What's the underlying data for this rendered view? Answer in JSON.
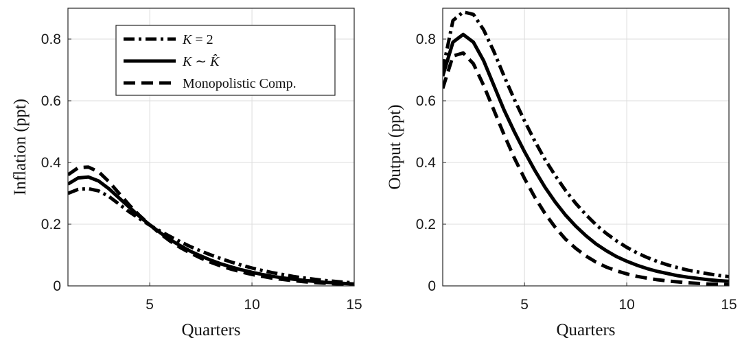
{
  "chart_data": [
    {
      "type": "line",
      "title": "",
      "xlabel": "Quarters",
      "ylabel": "Inflation (ppt)",
      "xlim": [
        1,
        15
      ],
      "ylim": [
        0,
        0.9
      ],
      "xticks": [
        "5",
        "10",
        "15"
      ],
      "yticks": [
        "0",
        "0.2",
        "0.4",
        "0.6",
        "0.8"
      ],
      "grid": true,
      "legend": "top-center",
      "x": [
        1,
        1.5,
        2,
        2.5,
        3,
        3.5,
        4,
        4.5,
        5,
        5.5,
        6,
        6.5,
        7,
        7.5,
        8,
        8.5,
        9,
        9.5,
        10,
        10.5,
        11,
        11.5,
        12,
        12.5,
        13,
        13.5,
        14,
        14.5,
        15
      ],
      "series": [
        {
          "name": "K = 2",
          "style": "dashdot",
          "values": [
            0.3,
            0.313,
            0.315,
            0.308,
            0.29,
            0.265,
            0.24,
            0.218,
            0.197,
            0.178,
            0.16,
            0.143,
            0.127,
            0.113,
            0.1,
            0.088,
            0.077,
            0.067,
            0.058,
            0.05,
            0.043,
            0.037,
            0.031,
            0.026,
            0.022,
            0.018,
            0.015,
            0.012,
            0.01
          ]
        },
        {
          "name": "K ~ K̂",
          "style": "solid",
          "values": [
            0.33,
            0.35,
            0.353,
            0.34,
            0.315,
            0.285,
            0.255,
            0.225,
            0.198,
            0.173,
            0.15,
            0.13,
            0.112,
            0.097,
            0.083,
            0.071,
            0.061,
            0.052,
            0.044,
            0.037,
            0.031,
            0.026,
            0.022,
            0.018,
            0.015,
            0.012,
            0.01,
            0.008,
            0.006
          ]
        },
        {
          "name": "Monopolistic Comp.",
          "style": "dashed",
          "values": [
            0.36,
            0.383,
            0.385,
            0.37,
            0.338,
            0.3,
            0.262,
            0.228,
            0.198,
            0.17,
            0.145,
            0.124,
            0.106,
            0.09,
            0.076,
            0.064,
            0.054,
            0.045,
            0.037,
            0.031,
            0.025,
            0.021,
            0.017,
            0.014,
            0.011,
            0.009,
            0.007,
            0.006,
            0.005
          ]
        }
      ]
    },
    {
      "type": "line",
      "title": "",
      "xlabel": "Quarters",
      "ylabel": "Output (ppt)",
      "xlim": [
        1,
        15
      ],
      "ylim": [
        0,
        0.9
      ],
      "xticks": [
        "5",
        "10",
        "15"
      ],
      "yticks": [
        "0",
        "0.2",
        "0.4",
        "0.6",
        "0.8"
      ],
      "grid": true,
      "x": [
        1,
        1.5,
        2,
        2.5,
        3,
        3.5,
        4,
        4.5,
        5,
        5.5,
        6,
        6.5,
        7,
        7.5,
        8,
        8.5,
        9,
        9.5,
        10,
        10.5,
        11,
        11.5,
        12,
        12.5,
        13,
        13.5,
        14,
        14.5,
        15
      ],
      "series": [
        {
          "name": "K = 2",
          "style": "dashdot",
          "values": [
            0.7,
            0.86,
            0.888,
            0.88,
            0.83,
            0.76,
            0.68,
            0.605,
            0.535,
            0.47,
            0.41,
            0.358,
            0.31,
            0.268,
            0.231,
            0.198,
            0.17,
            0.146,
            0.125,
            0.107,
            0.092,
            0.079,
            0.068,
            0.059,
            0.051,
            0.045,
            0.039,
            0.034,
            0.03
          ]
        },
        {
          "name": "K ~ K̂",
          "style": "solid",
          "values": [
            0.68,
            0.79,
            0.815,
            0.79,
            0.73,
            0.65,
            0.57,
            0.5,
            0.435,
            0.375,
            0.32,
            0.272,
            0.23,
            0.194,
            0.163,
            0.136,
            0.114,
            0.095,
            0.08,
            0.067,
            0.056,
            0.047,
            0.04,
            0.033,
            0.028,
            0.024,
            0.02,
            0.017,
            0.015
          ]
        },
        {
          "name": "Monopolistic Comp.",
          "style": "dashed",
          "values": [
            0.64,
            0.745,
            0.755,
            0.72,
            0.65,
            0.57,
            0.49,
            0.415,
            0.348,
            0.288,
            0.235,
            0.19,
            0.152,
            0.122,
            0.097,
            0.077,
            0.061,
            0.049,
            0.039,
            0.031,
            0.025,
            0.02,
            0.016,
            0.013,
            0.01,
            0.008,
            0.006,
            0.005,
            0.004
          ]
        }
      ]
    }
  ],
  "legend": {
    "entries": [
      {
        "lhs": "K",
        "op": " = ",
        "rhs": "2"
      },
      {
        "lhs": "K",
        "op": " ∼ ",
        "rhs": "K̂"
      },
      {
        "text": "Monopolistic Comp."
      }
    ]
  }
}
